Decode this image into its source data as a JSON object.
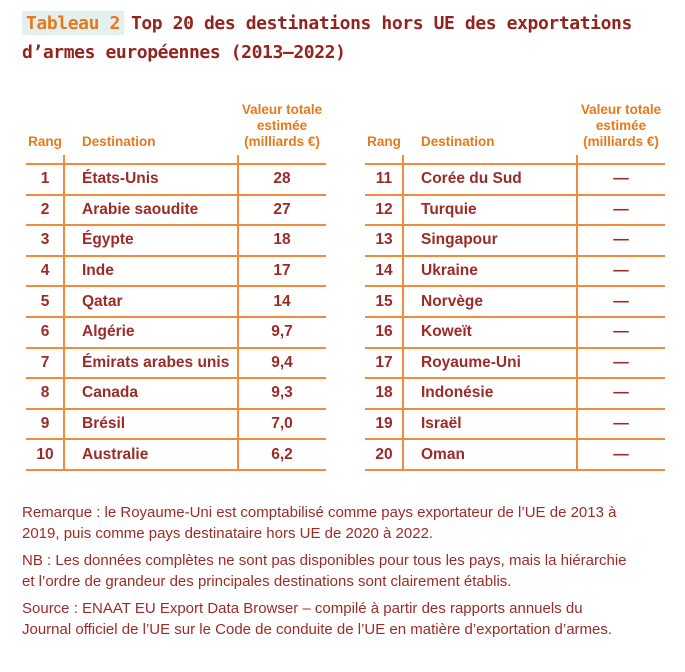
{
  "title": {
    "tag": "Tableau 2",
    "line1": "Top 20 des destinations hors UE des exportations",
    "line2": "d’armes européennes (2013–2022)"
  },
  "table_headers": {
    "rank": "Rang",
    "destination": "Destination",
    "value_lines": [
      "Valeur totale",
      "estimée",
      "(milliards €)"
    ]
  },
  "left_table": {
    "rows": [
      {
        "rank": "1",
        "destination": "États-Unis",
        "value": "28"
      },
      {
        "rank": "2",
        "destination": "Arabie saoudite",
        "value": "27"
      },
      {
        "rank": "3",
        "destination": "Égypte",
        "value": "18"
      },
      {
        "rank": "4",
        "destination": "Inde",
        "value": "17"
      },
      {
        "rank": "5",
        "destination": "Qatar",
        "value": "14"
      },
      {
        "rank": "6",
        "destination": "Algérie",
        "value": "9,7"
      },
      {
        "rank": "7",
        "destination": "Émirats arabes unis",
        "value": "9,4"
      },
      {
        "rank": "8",
        "destination": "Canada",
        "value": "9,3"
      },
      {
        "rank": "9",
        "destination": "Brésil",
        "value": "7,0"
      },
      {
        "rank": "10",
        "destination": "Australie",
        "value": "6,2"
      }
    ]
  },
  "right_table": {
    "rows": [
      {
        "rank": "11",
        "destination": "Corée du Sud",
        "value": "—"
      },
      {
        "rank": "12",
        "destination": "Turquie",
        "value": "—"
      },
      {
        "rank": "13",
        "destination": "Singapour",
        "value": "—"
      },
      {
        "rank": "14",
        "destination": "Ukraine",
        "value": "—"
      },
      {
        "rank": "15",
        "destination": "Norvège",
        "value": "—"
      },
      {
        "rank": "16",
        "destination": "Koweït",
        "value": "—"
      },
      {
        "rank": "17",
        "destination": "Royaume-Uni",
        "value": "—"
      },
      {
        "rank": "18",
        "destination": "Indonésie",
        "value": "—"
      },
      {
        "rank": "19",
        "destination": "Israël",
        "value": "—"
      },
      {
        "rank": "20",
        "destination": "Oman",
        "value": "—"
      }
    ]
  },
  "notes": {
    "remarque": {
      "lines": [
        "Remarque : le Royaume-Uni est comptabilisé comme pays exportateur de l’UE de 2013 à",
        "2019, puis comme pays destinataire hors UE de 2020 à 2022."
      ]
    },
    "nb": {
      "lines": [
        "NB : Les données complètes ne sont pas disponibles pour tous les pays, mais la hiérarchie",
        "et l’ordre de grandeur des principales destinations sont clairement établis."
      ]
    },
    "source": {
      "lines": [
        "Source : ENAAT EU Export Data Browser – compilé à partir des rapports annuels du",
        "Journal officiel de l’UE sur le Code de conduite de l’UE en matière d’exportation d’armes."
      ]
    }
  },
  "colors": {
    "accent_orange": "#E8791A",
    "grid_orange": "#F08C3A",
    "body_red": "#9C2B28",
    "title_red": "#93231E",
    "tag_highlight": "#E4F0ED"
  }
}
